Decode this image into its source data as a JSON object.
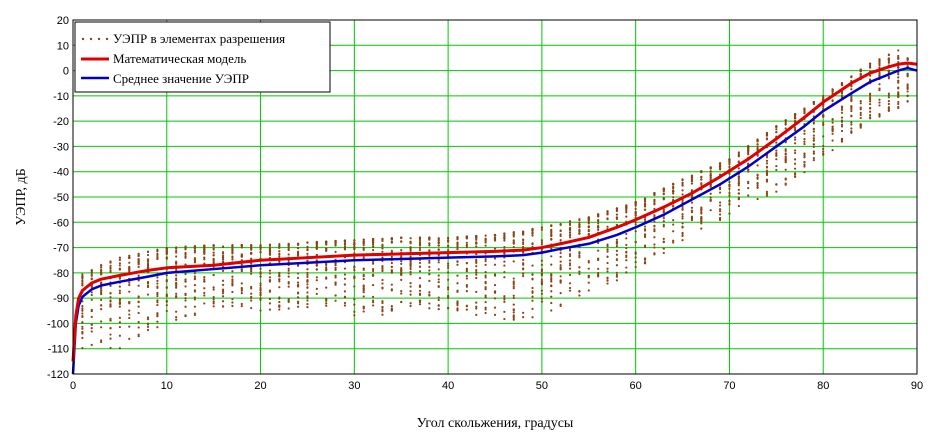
{
  "chart_data": {
    "type": "line",
    "xlabel": "Угол скольжения, градусы",
    "ylabel": "УЭПР, дБ",
    "xlim": [
      0,
      90
    ],
    "ylim": [
      -120,
      20
    ],
    "xticks": [
      0,
      10,
      20,
      30,
      40,
      50,
      60,
      70,
      80,
      90
    ],
    "yticks": [
      20,
      10,
      0,
      -10,
      -20,
      -30,
      -40,
      -50,
      -60,
      -70,
      -80,
      -90,
      -100,
      -110,
      -120
    ],
    "grid": true,
    "legend_position": "top-left",
    "series": [
      {
        "name": "УЭПР в элементах разрешения",
        "style": "dots",
        "color": "#8B4513",
        "x": [
          1,
          5,
          10,
          15,
          20,
          25,
          30,
          35,
          40,
          45,
          50,
          55,
          60,
          65,
          70,
          75,
          80,
          85,
          88,
          89
        ],
        "y_max": [
          -80,
          -74,
          -70,
          -69,
          -69,
          -68,
          -67,
          -66,
          -66,
          -65,
          -62,
          -58,
          -52,
          -43,
          -35,
          -22,
          -10,
          3,
          8,
          5
        ],
        "y_min": [
          -110,
          -110,
          -100,
          -95,
          -95,
          -95,
          -98,
          -96,
          -96,
          -100,
          -97,
          -88,
          -80,
          -68,
          -57,
          -48,
          -35,
          -20,
          -15,
          -13
        ]
      },
      {
        "name": "Математическая модель",
        "color": "#e00000",
        "x": [
          0,
          0.3,
          0.6,
          1,
          2,
          3,
          5,
          8,
          10,
          15,
          20,
          25,
          30,
          35,
          40,
          45,
          48,
          50,
          52,
          55,
          58,
          60,
          63,
          66,
          69,
          72,
          75,
          78,
          80,
          83,
          85,
          87,
          88,
          89,
          90
        ],
        "y": [
          -115,
          -97,
          -90,
          -87,
          -84,
          -82.5,
          -81,
          -79,
          -78,
          -77,
          -75,
          -74,
          -73,
          -72.5,
          -72,
          -71.5,
          -71,
          -70,
          -68.5,
          -66,
          -62,
          -59,
          -54,
          -48.5,
          -42,
          -35,
          -27,
          -18.5,
          -12.5,
          -5,
          -1,
          1.5,
          2.5,
          3,
          2.5
        ]
      },
      {
        "name": "Среднее значение УЭПР",
        "color": "#0000c8",
        "x": [
          0,
          0.3,
          0.6,
          1,
          2,
          3,
          5,
          8,
          10,
          15,
          20,
          25,
          30,
          35,
          40,
          45,
          48,
          50,
          52,
          55,
          58,
          60,
          63,
          66,
          69,
          72,
          75,
          78,
          80,
          83,
          85,
          87,
          88,
          89,
          90
        ],
        "y": [
          -120,
          -100,
          -93,
          -89.5,
          -86.5,
          -85,
          -83.5,
          -81.5,
          -80,
          -78.5,
          -77,
          -76,
          -75,
          -74.5,
          -74,
          -73.5,
          -73,
          -72,
          -70.5,
          -68.5,
          -65,
          -62,
          -57,
          -51,
          -45,
          -38,
          -30,
          -22,
          -16,
          -9,
          -4.5,
          -1.5,
          0,
          1,
          0
        ]
      }
    ]
  },
  "colors": {
    "grid": "#00c800",
    "frame": "#000000",
    "scatter": "#8B4513",
    "model": "#e00000",
    "mean": "#0000c8"
  }
}
